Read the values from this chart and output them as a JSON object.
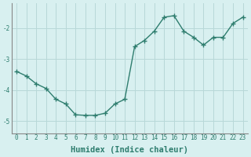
{
  "x": [
    0,
    1,
    2,
    3,
    4,
    5,
    6,
    7,
    8,
    9,
    10,
    11,
    12,
    13,
    14,
    15,
    16,
    17,
    18,
    19,
    20,
    21,
    22,
    23
  ],
  "y": [
    -3.4,
    -3.55,
    -3.8,
    -3.95,
    -4.3,
    -4.45,
    -4.8,
    -4.82,
    -4.82,
    -4.75,
    -4.45,
    -4.3,
    -2.6,
    -2.4,
    -2.1,
    -1.65,
    -1.6,
    -2.1,
    -2.3,
    -2.55,
    -2.3,
    -2.3,
    -1.85,
    -1.65
  ],
  "line_color": "#2e7d6e",
  "marker": "+",
  "marker_size": 4.0,
  "bg_color": "#d8f0f0",
  "grid_color": "#b8d8d8",
  "xlabel": "Humidex (Indice chaleur)",
  "ylim": [
    -5.4,
    -1.2
  ],
  "xlim": [
    -0.5,
    23.5
  ],
  "yticks": [
    -5,
    -4,
    -3,
    -2
  ],
  "xticks": [
    0,
    1,
    2,
    3,
    4,
    5,
    6,
    7,
    8,
    9,
    10,
    11,
    12,
    13,
    14,
    15,
    16,
    17,
    18,
    19,
    20,
    21,
    22,
    23
  ],
  "tick_fontsize": 5.5,
  "xlabel_fontsize": 7.5,
  "label_color": "#2e7d6e",
  "axis_color": "#888888",
  "linewidth": 1.0,
  "marker_linewidth": 1.0
}
